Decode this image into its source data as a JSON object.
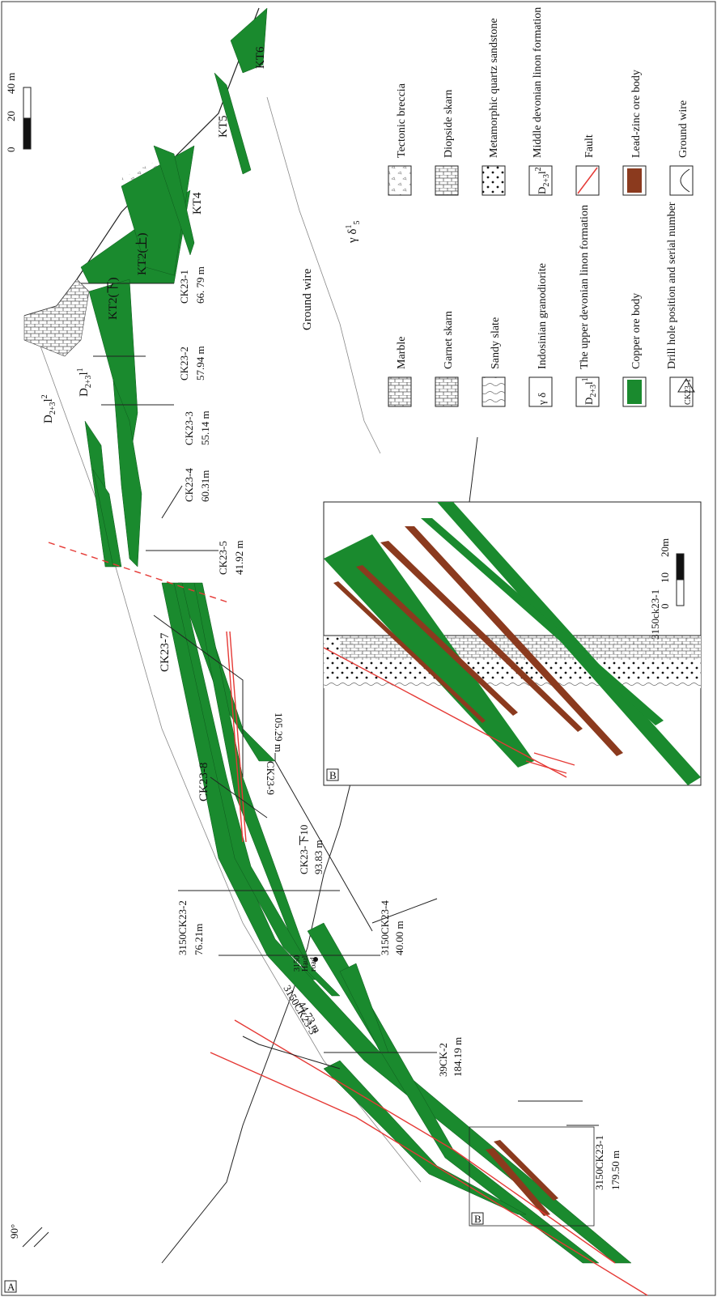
{
  "panel_labels": {
    "main": "A",
    "inset": "B"
  },
  "dip": "90°",
  "scale_main": {
    "ticks": [
      "0",
      "20",
      "40 m"
    ]
  },
  "scale_inset": {
    "ticks": [
      "0",
      "10",
      "20m"
    ]
  },
  "formations": {
    "d_upper_main": "D",
    "d_sub": "2+3",
    "l_sup1": "1",
    "l_sup2": "2",
    "l": "l",
    "granodiorite": "γ δ",
    "gd_sup": "1",
    "gd_sub": "5"
  },
  "ore_bodies": {
    "kt2_lower": "KT2(下)",
    "kt2_upper": "KT2(上)",
    "kt4": "KT4",
    "kt5": "KT5",
    "kt6": "KT6"
  },
  "ground_wire_label": "Ground wire",
  "haul_road": [
    "3150",
    "Haul",
    "road"
  ],
  "drill_holes": [
    {
      "id": "CK23-1",
      "depth": "66. 79 m"
    },
    {
      "id": "CK23-2",
      "depth": "57.94 m"
    },
    {
      "id": "CK23-3",
      "depth": "55.14 m"
    },
    {
      "id": "CK23-4",
      "depth": "60.31m"
    },
    {
      "id": "CK23-5",
      "depth": "41.92 m"
    },
    {
      "id": "CK23-7",
      "depth": ""
    },
    {
      "id": "CK23-8",
      "depth": ""
    },
    {
      "id": "CK23-9",
      "depth": "105.29 m"
    },
    {
      "id": "CK23-下10",
      "depth": "93.83 m"
    },
    {
      "id": "3150CK23-2",
      "depth": "76.21m"
    },
    {
      "id": "3150CK23-4",
      "depth": "40.00 m"
    },
    {
      "id": "3150CK23-3",
      "depth": "44.73 m"
    },
    {
      "id": "39CK-2",
      "depth": "184.19 m"
    },
    {
      "id": "3150CK23-1",
      "depth": "179.50 m"
    }
  ],
  "inset_hole_label": "3150ck23-1",
  "legend": [
    {
      "name": "Tectonic breccia"
    },
    {
      "name": "Marble"
    },
    {
      "name": "Diopside skarn"
    },
    {
      "name": "Garnet skarn"
    },
    {
      "name": "Metamorphic quartz sandstone"
    },
    {
      "name": "Sandy slate"
    },
    {
      "name": "Middle devonian linon formation"
    },
    {
      "name": "Indosinian granodiorite"
    },
    {
      "name": "Fault"
    },
    {
      "name": "The upper devonian linon formation"
    },
    {
      "name": "Lead-zinc ore body"
    },
    {
      "name": "Copper ore body"
    },
    {
      "name": "Ground wire"
    },
    {
      "name": "Drill hole position and serial number"
    }
  ],
  "legend_symbol_labels": {
    "ck_small": "CK23-1"
  },
  "colors": {
    "copper": "#1a8a2e",
    "leadzinc": "#8b3a1e",
    "fault": "#e53935",
    "line": "#222222",
    "blue": "#2b6cc8"
  }
}
